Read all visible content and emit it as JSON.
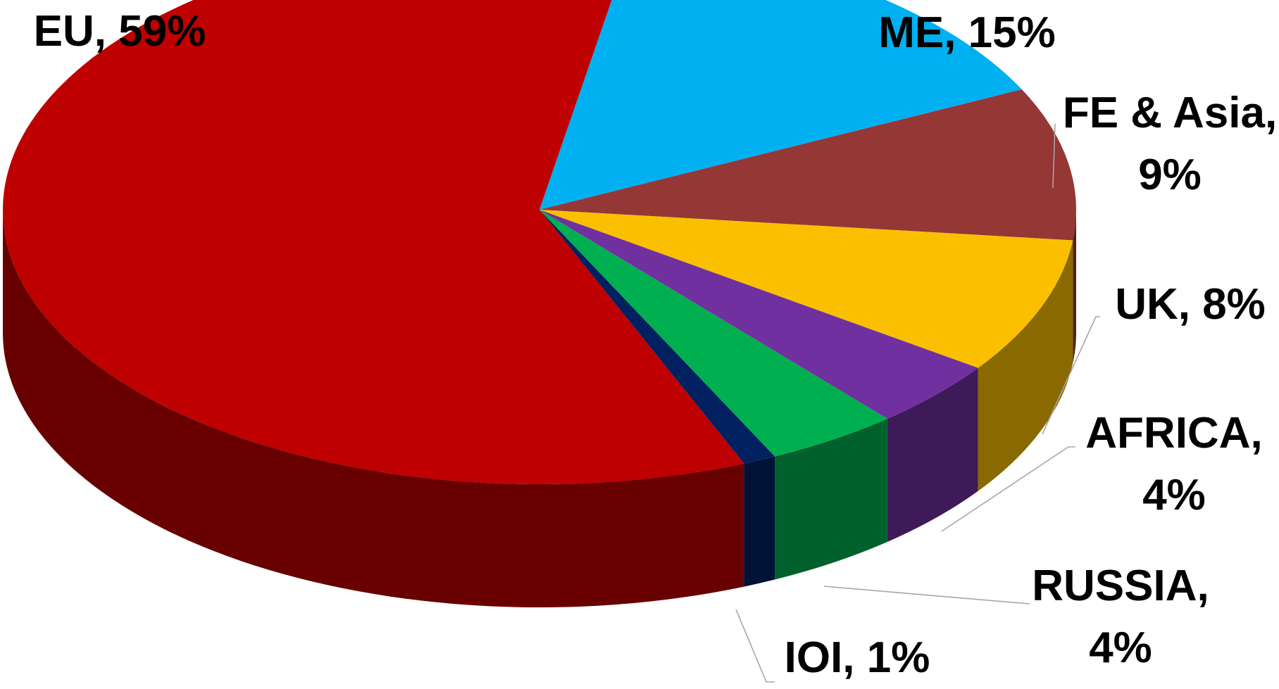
{
  "chart_data": {
    "type": "pie3d",
    "labels": [
      "EU, 59%",
      "ME, 15%",
      "FE & Asia, 9%",
      "UK, 8%",
      "AFRICA, 4%",
      "RUSSIA, 4%",
      "IOI, 1%"
    ],
    "values": [
      59,
      15,
      9,
      8,
      4,
      4,
      1
    ],
    "colors": [
      "#bf0000",
      "#00b0f0",
      "#953735",
      "#fac000",
      "#7030a0",
      "#00b050",
      "#002060"
    ]
  }
}
